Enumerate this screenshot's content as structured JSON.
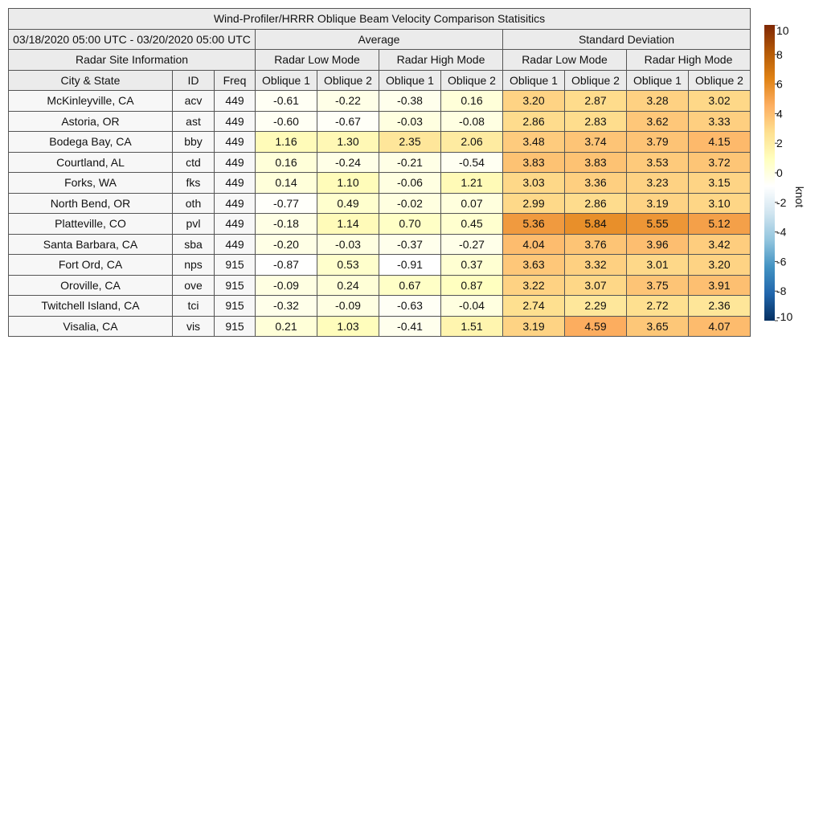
{
  "chart_data": {
    "type": "table",
    "title": "Wind-Profiler/HRRR Oblique Beam Velocity Comparison Statisitics",
    "date_range": "03/18/2020 05:00 UTC - 03/20/2020 05:00 UTC",
    "groups": {
      "average": "Average",
      "std": "Standard Deviation"
    },
    "site_info_label": "Radar Site Information",
    "modes": [
      "Radar Low Mode",
      "Radar High Mode",
      "Radar Low Mode",
      "Radar High Mode"
    ],
    "columns": [
      "City & State",
      "ID",
      "Freq",
      "Oblique 1",
      "Oblique 2",
      "Oblique 1",
      "Oblique 2",
      "Oblique 1",
      "Oblique 2",
      "Oblique 1",
      "Oblique 2"
    ],
    "rows": [
      {
        "city": "McKinleyville, CA",
        "id": "acv",
        "freq": "449",
        "values": [
          "-0.61",
          "-0.22",
          "-0.38",
          "0.16",
          "3.20",
          "2.87",
          "3.28",
          "3.02"
        ]
      },
      {
        "city": "Astoria, OR",
        "id": "ast",
        "freq": "449",
        "values": [
          "-0.60",
          "-0.67",
          "-0.03",
          "-0.08",
          "2.86",
          "2.83",
          "3.62",
          "3.33"
        ]
      },
      {
        "city": "Bodega Bay, CA",
        "id": "bby",
        "freq": "449",
        "values": [
          "1.16",
          "1.30",
          "2.35",
          "2.06",
          "3.48",
          "3.74",
          "3.79",
          "4.15"
        ]
      },
      {
        "city": "Courtland, AL",
        "id": "ctd",
        "freq": "449",
        "values": [
          "0.16",
          "-0.24",
          "-0.21",
          "-0.54",
          "3.83",
          "3.83",
          "3.53",
          "3.72"
        ]
      },
      {
        "city": "Forks, WA",
        "id": "fks",
        "freq": "449",
        "values": [
          "0.14",
          "1.10",
          "-0.06",
          "1.21",
          "3.03",
          "3.36",
          "3.23",
          "3.15"
        ]
      },
      {
        "city": "North Bend, OR",
        "id": "oth",
        "freq": "449",
        "values": [
          "-0.77",
          "0.49",
          "-0.02",
          "0.07",
          "2.99",
          "2.86",
          "3.19",
          "3.10"
        ]
      },
      {
        "city": "Platteville, CO",
        "id": "pvl",
        "freq": "449",
        "values": [
          "-0.18",
          "1.14",
          "0.70",
          "0.45",
          "5.36",
          "5.84",
          "5.55",
          "5.12"
        ]
      },
      {
        "city": "Santa Barbara, CA",
        "id": "sba",
        "freq": "449",
        "values": [
          "-0.20",
          "-0.03",
          "-0.37",
          "-0.27",
          "4.04",
          "3.76",
          "3.96",
          "3.42"
        ]
      },
      {
        "city": "Fort Ord, CA",
        "id": "nps",
        "freq": "915",
        "values": [
          "-0.87",
          "0.53",
          "-0.91",
          "0.37",
          "3.63",
          "3.32",
          "3.01",
          "3.20"
        ]
      },
      {
        "city": "Oroville, CA",
        "id": "ove",
        "freq": "915",
        "values": [
          "-0.09",
          "0.24",
          "0.67",
          "0.87",
          "3.22",
          "3.07",
          "3.75",
          "3.91"
        ]
      },
      {
        "city": "Twitchell Island, CA",
        "id": "tci",
        "freq": "915",
        "values": [
          "-0.32",
          "-0.09",
          "-0.63",
          "-0.04",
          "2.74",
          "2.29",
          "2.72",
          "2.36"
        ]
      },
      {
        "city": "Visalia, CA",
        "id": "vis",
        "freq": "915",
        "values": [
          "0.21",
          "1.03",
          "-0.41",
          "1.51",
          "3.19",
          "4.59",
          "3.65",
          "4.07"
        ]
      }
    ],
    "colorbar": {
      "label": "knot",
      "range": [
        -10,
        10
      ],
      "ticks": [
        10,
        8,
        6,
        4,
        2,
        0,
        -2,
        -4,
        -6,
        -8,
        -10
      ],
      "colors": [
        "#053061",
        "#2166ac",
        "#4393c3",
        "#92c5de",
        "#d1e5f0",
        "#ffffff",
        "#ffffbf",
        "#fee090",
        "#fdae61",
        "#e08214",
        "#b35806",
        "#7f2704"
      ]
    }
  }
}
